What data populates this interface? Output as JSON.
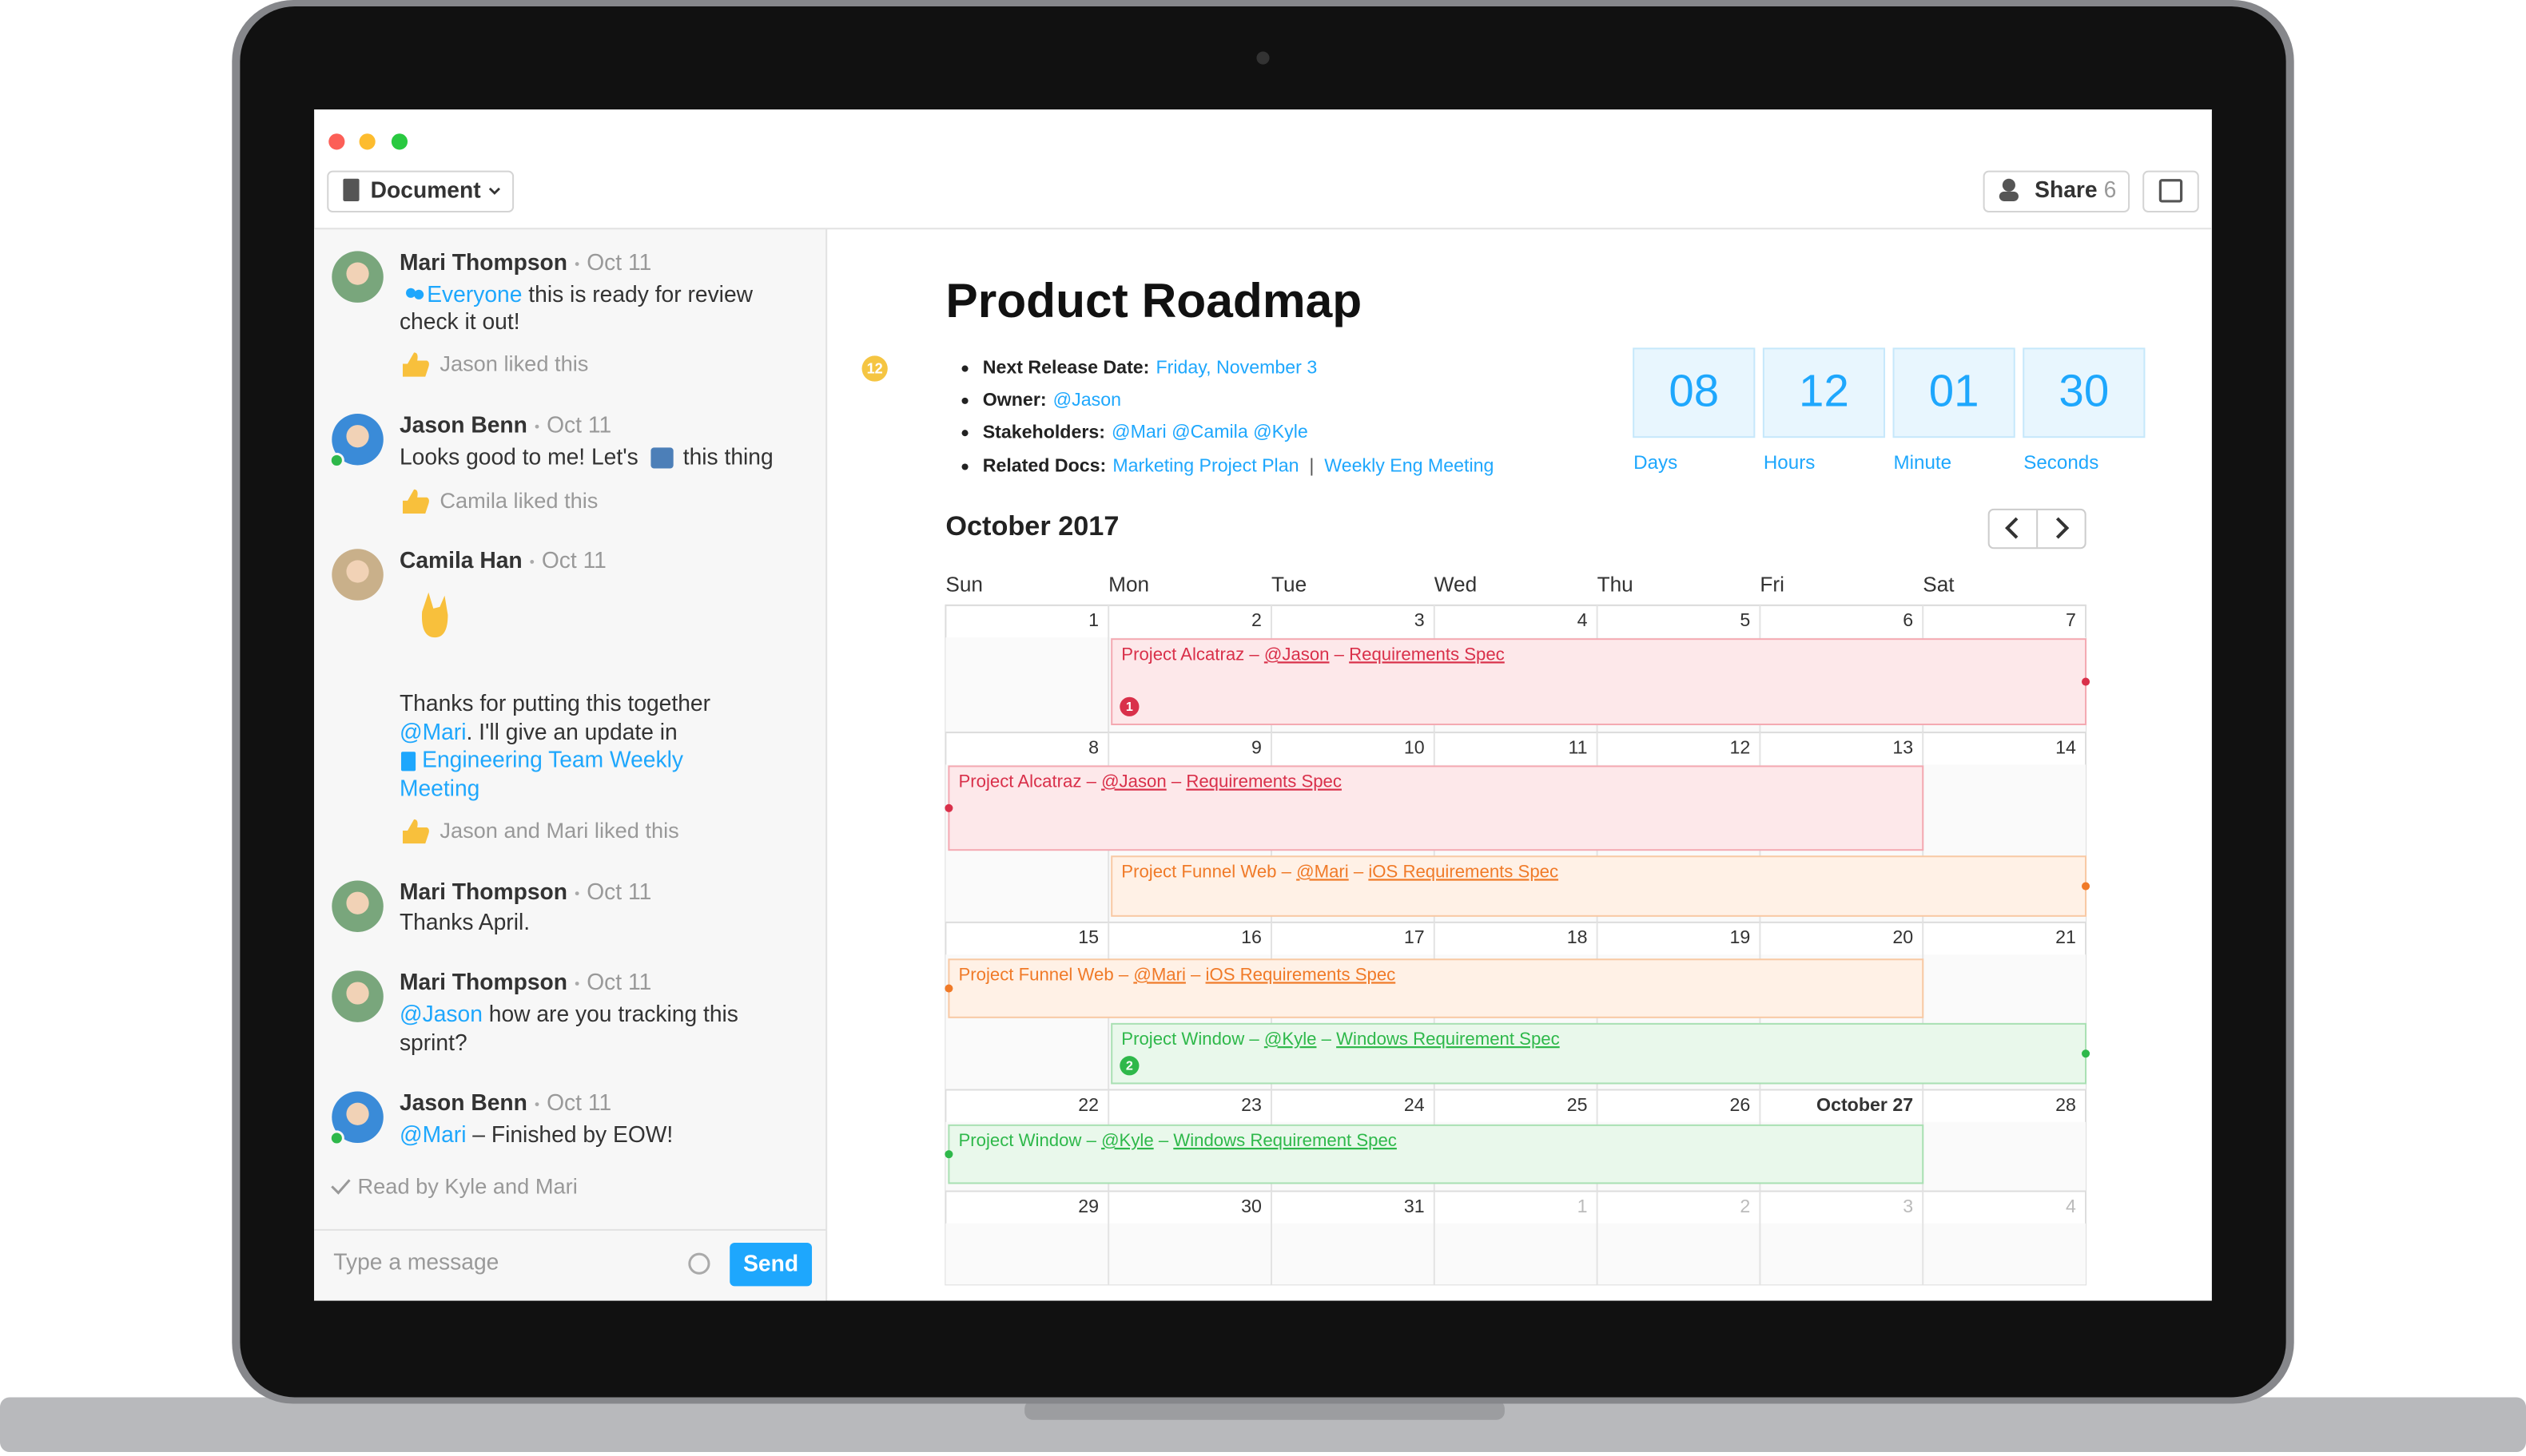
{
  "toolbar": {
    "document_button": "Document",
    "share_button": "Share",
    "share_count": 6
  },
  "chat": {
    "messages": [
      {
        "author": "Mari Thompson",
        "date": "Oct 11",
        "lines": [
          [
            {
              "text": "Everyone",
              "link": true
            },
            {
              "text": " this is ready for review"
            }
          ],
          [
            {
              "text": "check it out!"
            }
          ]
        ],
        "liked": "Jason liked this"
      },
      {
        "author": "Jason Benn",
        "date": "Oct 11",
        "lines": [
          [
            {
              "text": "Looks good to me! Let's"
            },
            {
              "text": "this thing"
            }
          ]
        ],
        "liked": "Camila liked this"
      },
      {
        "author": "Camila Han",
        "date": "Oct 11",
        "lines": [
          [
            {
              "text": "Thanks for putting this together"
            }
          ],
          [
            {
              "text": "@Mari",
              "link": true
            },
            {
              "text": ". I'll give an update in"
            }
          ],
          [
            {
              "text": "Engineering Team Weekly",
              "link": true
            }
          ],
          [
            {
              "text": "Meeting",
              "link": true
            }
          ]
        ],
        "liked": "Jason and Mari liked this"
      },
      {
        "author": "Mari Thompson",
        "date": "Oct 11",
        "lines": [
          [
            {
              "text": "Thanks April."
            }
          ]
        ]
      },
      {
        "author": "Mari Thompson",
        "date": "Oct 11",
        "lines": [
          [
            {
              "text": "@Jason",
              "link": true
            },
            {
              "text": " how are you tracking this"
            }
          ],
          [
            {
              "text": "sprint?"
            }
          ]
        ]
      },
      {
        "author": "Jason Benn",
        "date": "Oct 11",
        "lines": [
          [
            {
              "text": "@Mari",
              "link": true
            },
            {
              "text": " – Finished by EOW!"
            }
          ]
        ]
      }
    ],
    "read_receipt": "Read by Kyle and Mari",
    "input_placeholder": "Type a message",
    "send_button": "Send"
  },
  "document": {
    "title": "Product Roadmap",
    "comment_count": 12,
    "details": [
      {
        "label": "Next Release Date:",
        "value": [
          {
            "text": "Friday, November 3",
            "link": true
          }
        ]
      },
      {
        "label": "Owner:",
        "value": [
          {
            "text": "@Jason",
            "link": true
          }
        ]
      },
      {
        "label": "Stakeholders:",
        "value": [
          {
            "text": "@Mari @Camila @Kyle",
            "link": true
          }
        ]
      },
      {
        "label": "Related Docs:",
        "value": [
          {
            "text": "Marketing Project Plan",
            "link": true
          },
          {
            "text": "  |  "
          },
          {
            "text": "Weekly Eng Meeting",
            "link": true
          }
        ]
      }
    ],
    "countdown": [
      {
        "value": "08",
        "label": "Days"
      },
      {
        "value": "12",
        "label": "Hours"
      },
      {
        "value": "01",
        "label": "Minute"
      },
      {
        "value": "30",
        "label": "Seconds"
      }
    ],
    "calendar": {
      "month": "October 2017",
      "weekdays": [
        "Sun",
        "Mon",
        "Tue",
        "Wed",
        "Thu",
        "Fri",
        "Sat"
      ],
      "weeks": [
        {
          "days": [
            1,
            2,
            3,
            4,
            5,
            6,
            7
          ]
        },
        {
          "days": [
            8,
            9,
            10,
            11,
            12,
            13,
            14
          ]
        },
        {
          "days": [
            15,
            16,
            17,
            18,
            19,
            20,
            21
          ]
        },
        {
          "days": [
            22,
            23,
            24,
            25,
            26,
            "October 27",
            28
          ]
        },
        {
          "days": [
            29,
            30,
            31,
            1,
            2,
            3,
            4
          ]
        }
      ],
      "events": [
        {
          "color": "#d9304a",
          "segments": [
            {
              "text": "Project Alcatraz – "
            },
            {
              "text": "@Jason",
              "link": true
            },
            {
              "text": " – "
            },
            {
              "text": "Requirements Spec",
              "link": true
            }
          ],
          "badge": 1
        },
        {
          "color": "#d9304a",
          "segments": [
            {
              "text": "Project Alcatraz – "
            },
            {
              "text": "@Jason",
              "link": true
            },
            {
              "text": " – "
            },
            {
              "text": "Requirements Spec",
              "link": true
            }
          ]
        },
        {
          "color": "#f07a28",
          "segments": [
            {
              "text": "Project Funnel Web – "
            },
            {
              "text": "@Mari",
              "link": true
            },
            {
              "text": " – "
            },
            {
              "text": "iOS Requirements Spec",
              "link": true
            }
          ]
        },
        {
          "color": "#f07a28",
          "segments": [
            {
              "text": "Project Funnel Web – "
            },
            {
              "text": "@Mari",
              "link": true
            },
            {
              "text": " – "
            },
            {
              "text": "iOS Requirements Spec",
              "link": true
            }
          ]
        },
        {
          "color": "#2eb84a",
          "segments": [
            {
              "text": "Project Window – "
            },
            {
              "text": "@Kyle",
              "link": true
            },
            {
              "text": " – "
            },
            {
              "text": "Windows Requirement Spec",
              "link": true
            }
          ],
          "badge": 2
        },
        {
          "color": "#2eb84a",
          "segments": [
            {
              "text": "Project Window – "
            },
            {
              "text": "@Kyle",
              "link": true
            },
            {
              "text": " – "
            },
            {
              "text": "Windows Requirement Spec",
              "link": true
            }
          ]
        }
      ]
    }
  }
}
